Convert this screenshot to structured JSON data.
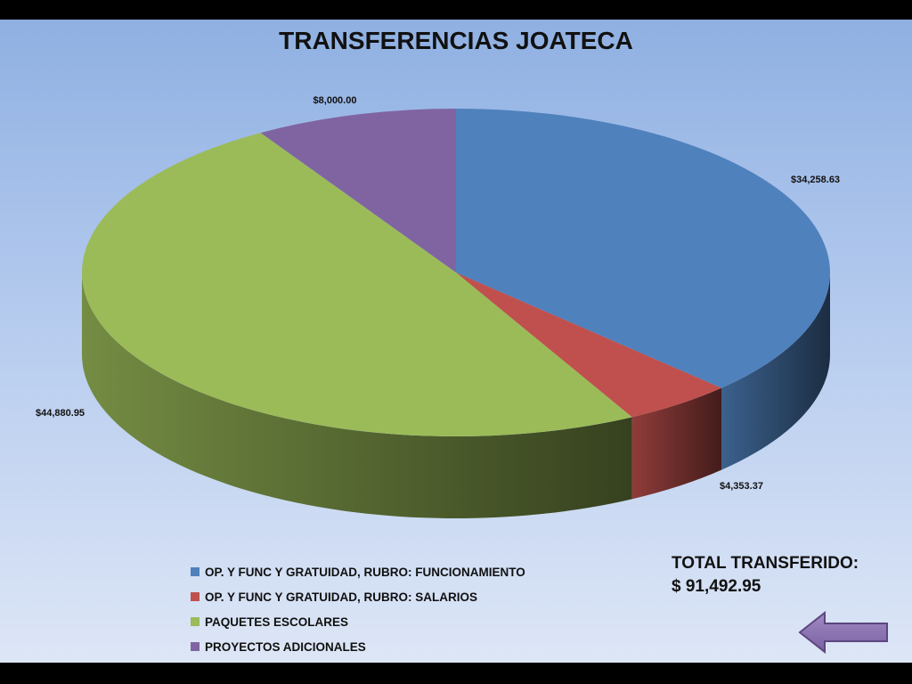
{
  "title": "TRANSFERENCIAS JOATECA",
  "chart_data": {
    "type": "pie",
    "title": "TRANSFERENCIAS JOATECA",
    "slices": [
      {
        "name": "OP. Y FUNC Y GRATUIDAD,  RUBRO: FUNCIONAMIENTO",
        "value": 34258.63,
        "label": "$34,258.63",
        "color": "#4f81bd"
      },
      {
        "name": "OP. Y FUNC Y GRATUIDAD,  RUBRO: SALARIOS",
        "value": 4353.37,
        "label": "$4,353.37",
        "color": "#c0504d"
      },
      {
        "name": "PAQUETES ESCOLARES",
        "value": 44880.95,
        "label": "$44,880.95",
        "color": "#9bbb59"
      },
      {
        "name": "PROYECTOS  ADICIONALES",
        "value": 8000.0,
        "label": "$8,000.00",
        "color": "#8064a2"
      }
    ],
    "legend_position": "bottom"
  },
  "total": {
    "label": "TOTAL TRANSFERIDO:",
    "value": "$ 91,492.95"
  },
  "nav": {
    "back_icon": "arrow-left-icon",
    "color": "#8064a2"
  }
}
